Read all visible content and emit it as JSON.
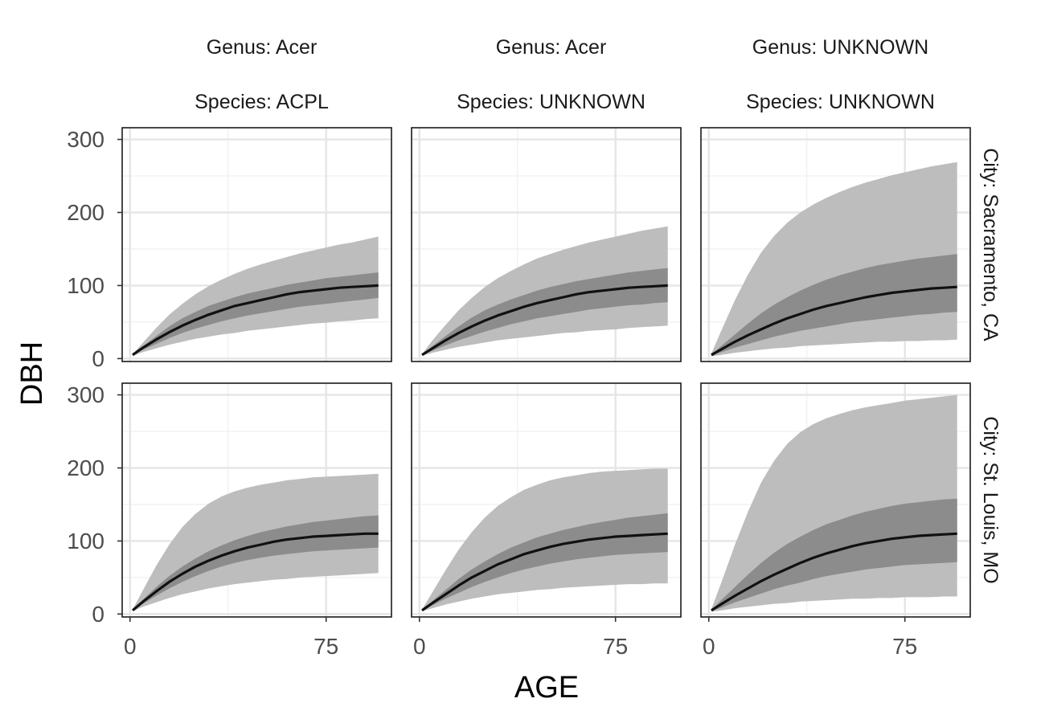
{
  "chart_data": {
    "type": "area",
    "xlabel": "AGE",
    "ylabel": "DBH",
    "xlim": [
      -3,
      100
    ],
    "ylim": [
      -4,
      316
    ],
    "x_ticks": [
      0,
      75
    ],
    "x_tick_labels": [
      "0",
      "75"
    ],
    "y_ticks": [
      0,
      100,
      200,
      300
    ],
    "y_tick_labels": [
      "0",
      "100",
      "200",
      "300"
    ],
    "grid": true,
    "column_strips": [
      {
        "genus": "Genus: Acer",
        "species": "Species: ACPL"
      },
      {
        "genus": "Genus: Acer",
        "species": "Species: UNKNOWN"
      },
      {
        "genus": "Genus: UNKNOWN",
        "species": "Species: UNKNOWN"
      }
    ],
    "row_strips": [
      "City: Sacramento, CA",
      "City: St. Louis, MO"
    ],
    "x": [
      1,
      5,
      10,
      15,
      20,
      25,
      30,
      35,
      40,
      45,
      50,
      55,
      60,
      65,
      70,
      75,
      80,
      85,
      90,
      95
    ],
    "panels": [
      {
        "row": 0,
        "col": 0,
        "median": [
          5,
          15,
          26,
          36,
          45,
          53,
          60,
          66,
          72,
          76,
          80,
          84,
          88,
          91,
          93,
          95,
          97,
          98,
          99,
          100
        ],
        "inner_low": [
          5,
          12,
          20,
          28,
          35,
          41,
          46,
          51,
          55,
          59,
          62,
          65,
          68,
          71,
          73,
          75,
          77,
          79,
          81,
          83
        ],
        "inner_high": [
          5,
          17,
          31,
          44,
          55,
          64,
          72,
          78,
          84,
          89,
          93,
          97,
          101,
          104,
          107,
          110,
          112,
          114,
          116,
          118
        ],
        "outer_low": [
          4,
          9,
          14,
          19,
          23,
          27,
          30,
          33,
          35,
          38,
          40,
          42,
          44,
          46,
          48,
          49,
          51,
          52,
          54,
          55
        ],
        "outer_high": [
          6,
          22,
          42,
          60,
          75,
          88,
          99,
          108,
          116,
          123,
          129,
          134,
          139,
          144,
          148,
          152,
          156,
          159,
          163,
          167
        ]
      },
      {
        "row": 0,
        "col": 1,
        "median": [
          5,
          14,
          25,
          35,
          44,
          52,
          59,
          65,
          71,
          76,
          80,
          84,
          88,
          91,
          93,
          95,
          97,
          98,
          99,
          100
        ],
        "inner_low": [
          5,
          11,
          18,
          25,
          31,
          37,
          42,
          47,
          51,
          55,
          58,
          61,
          64,
          67,
          69,
          71,
          73,
          74,
          76,
          77
        ],
        "inner_high": [
          5,
          17,
          31,
          44,
          56,
          66,
          74,
          81,
          87,
          93,
          98,
          102,
          106,
          109,
          112,
          115,
          118,
          120,
          122,
          124
        ],
        "outer_low": [
          4,
          8,
          12,
          16,
          19,
          22,
          25,
          27,
          29,
          31,
          33,
          35,
          36,
          38,
          39,
          40,
          42,
          43,
          44,
          45
        ],
        "outer_high": [
          6,
          25,
          46,
          66,
          83,
          98,
          110,
          120,
          129,
          137,
          143,
          149,
          154,
          159,
          163,
          167,
          171,
          175,
          178,
          181
        ]
      },
      {
        "row": 0,
        "col": 2,
        "median": [
          5,
          13,
          23,
          32,
          40,
          48,
          55,
          61,
          67,
          72,
          76,
          80,
          84,
          87,
          90,
          92,
          94,
          96,
          97,
          98
        ],
        "inner_low": [
          4,
          9,
          15,
          20,
          25,
          30,
          34,
          38,
          41,
          44,
          47,
          50,
          52,
          54,
          56,
          58,
          60,
          61,
          63,
          64
        ],
        "inner_high": [
          6,
          18,
          33,
          48,
          62,
          74,
          84,
          93,
          101,
          108,
          114,
          119,
          124,
          128,
          131,
          134,
          137,
          139,
          141,
          143
        ],
        "outer_low": [
          3,
          5,
          8,
          10,
          12,
          14,
          15,
          17,
          18,
          19,
          20,
          21,
          22,
          23,
          23,
          24,
          24,
          25,
          25,
          26
        ],
        "outer_high": [
          7,
          40,
          80,
          115,
          145,
          168,
          186,
          200,
          211,
          220,
          228,
          235,
          241,
          246,
          251,
          255,
          259,
          263,
          266,
          269
        ]
      },
      {
        "row": 1,
        "col": 0,
        "median": [
          5,
          17,
          31,
          44,
          55,
          65,
          73,
          80,
          86,
          91,
          95,
          99,
          102,
          104,
          106,
          107,
          108,
          109,
          110,
          110
        ],
        "inner_low": [
          5,
          14,
          25,
          35,
          44,
          52,
          59,
          65,
          70,
          74,
          77,
          80,
          82,
          84,
          86,
          87,
          88,
          89,
          90,
          91
        ],
        "inner_high": [
          5,
          20,
          37,
          52,
          65,
          76,
          86,
          94,
          101,
          107,
          112,
          116,
          120,
          123,
          126,
          128,
          130,
          132,
          134,
          135
        ],
        "outer_low": [
          4,
          10,
          16,
          22,
          27,
          31,
          35,
          38,
          41,
          43,
          45,
          47,
          48,
          50,
          51,
          52,
          53,
          54,
          55,
          56
        ],
        "outer_high": [
          6,
          33,
          66,
          95,
          119,
          137,
          151,
          161,
          168,
          173,
          177,
          180,
          183,
          185,
          187,
          188,
          189,
          190,
          191,
          192
        ]
      },
      {
        "row": 1,
        "col": 1,
        "median": [
          5,
          15,
          27,
          39,
          50,
          59,
          68,
          75,
          82,
          87,
          92,
          96,
          99,
          102,
          104,
          106,
          107,
          108,
          109,
          110
        ],
        "inner_low": [
          5,
          12,
          21,
          29,
          37,
          44,
          50,
          56,
          61,
          65,
          69,
          72,
          75,
          77,
          79,
          81,
          82,
          83,
          84,
          85
        ],
        "inner_high": [
          5,
          18,
          33,
          48,
          61,
          72,
          82,
          91,
          98,
          105,
          110,
          115,
          119,
          123,
          126,
          129,
          132,
          134,
          136,
          138
        ],
        "outer_low": [
          4,
          8,
          13,
          17,
          21,
          24,
          27,
          29,
          31,
          33,
          34,
          36,
          37,
          38,
          39,
          40,
          41,
          41,
          42,
          42
        ],
        "outer_high": [
          6,
          30,
          60,
          88,
          112,
          132,
          148,
          160,
          170,
          177,
          183,
          187,
          190,
          193,
          195,
          196,
          197,
          198,
          199,
          199
        ]
      },
      {
        "row": 1,
        "col": 2,
        "median": [
          5,
          14,
          25,
          35,
          45,
          54,
          62,
          70,
          77,
          83,
          88,
          93,
          97,
          100,
          103,
          105,
          107,
          108,
          109,
          110
        ],
        "inner_low": [
          4,
          9,
          16,
          22,
          28,
          34,
          39,
          43,
          48,
          52,
          55,
          58,
          61,
          63,
          65,
          67,
          68,
          69,
          70,
          71
        ],
        "inner_high": [
          6,
          20,
          37,
          54,
          70,
          84,
          96,
          106,
          115,
          123,
          129,
          135,
          140,
          144,
          148,
          151,
          153,
          155,
          157,
          158
        ],
        "outer_low": [
          3,
          5,
          8,
          10,
          12,
          14,
          15,
          17,
          18,
          19,
          20,
          21,
          21,
          22,
          22,
          23,
          23,
          23,
          24,
          24
        ],
        "outer_high": [
          7,
          45,
          95,
          140,
          180,
          210,
          233,
          249,
          260,
          268,
          274,
          279,
          283,
          286,
          289,
          292,
          294,
          296,
          298,
          300
        ]
      }
    ]
  }
}
